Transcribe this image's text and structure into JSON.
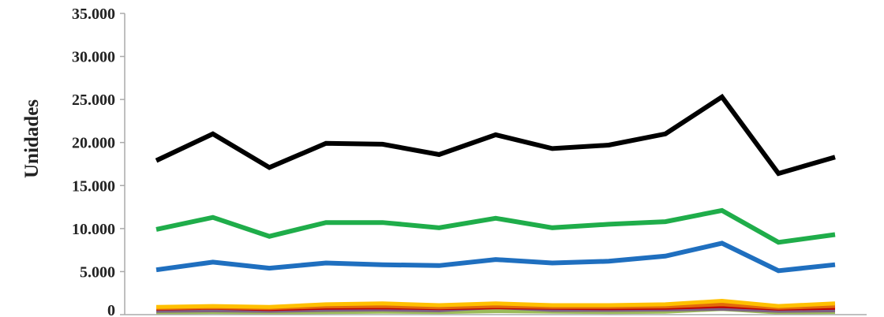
{
  "chart_data": {
    "type": "line",
    "title": "",
    "xlabel": "",
    "ylabel": "Unidades",
    "ylim": [
      0,
      35000
    ],
    "yticks": [
      "35.000",
      "30.000",
      "25.000",
      "20.000",
      "15.000",
      "10.000",
      "5.000",
      "0"
    ],
    "grid": false,
    "legend": "none",
    "x": [
      1,
      2,
      3,
      4,
      5,
      6,
      7,
      8,
      9,
      10,
      11,
      12,
      13
    ],
    "series": [
      {
        "color": "#000000",
        "values": [
          17900,
          21000,
          17100,
          19900,
          19800,
          18600,
          20900,
          19300,
          19700,
          21000,
          25300,
          16400,
          18300
        ]
      },
      {
        "color": "#1fad4a",
        "values": [
          9900,
          11300,
          9100,
          10700,
          10700,
          10100,
          11200,
          10100,
          10500,
          10800,
          12100,
          8400,
          9300
        ]
      },
      {
        "color": "#1f6fbf",
        "values": [
          5200,
          6100,
          5400,
          6000,
          5800,
          5700,
          6400,
          6000,
          6200,
          6800,
          8300,
          5100,
          5800
        ]
      },
      {
        "color": "#ffc000",
        "values": [
          900,
          1000,
          900,
          1200,
          1300,
          1100,
          1300,
          1100,
          1100,
          1200,
          1600,
          1000,
          1300
        ]
      },
      {
        "color": "#e26b0a",
        "values": [
          750,
          850,
          750,
          950,
          1000,
          850,
          1000,
          900,
          900,
          950,
          1200,
          800,
          1000
        ]
      },
      {
        "color": "#c00000",
        "values": [
          700,
          800,
          650,
          800,
          850,
          750,
          850,
          800,
          750,
          800,
          1000,
          700,
          800
        ]
      },
      {
        "color": "#7f6084",
        "values": [
          450,
          500,
          450,
          550,
          600,
          500,
          900,
          550,
          550,
          600,
          700,
          450,
          500
        ]
      },
      {
        "color": "#9bbb59",
        "values": [
          250,
          300,
          250,
          300,
          350,
          300,
          400,
          350,
          300,
          350,
          650,
          250,
          300
        ]
      }
    ]
  }
}
